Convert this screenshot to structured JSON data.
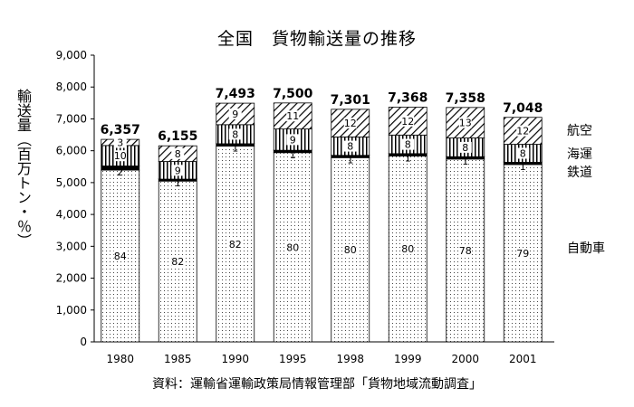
{
  "chart_data": {
    "type": "bar",
    "stacked": true,
    "title": "全国　貨物輸送量の推移",
    "ylabel": "輸送量（百万トン・％）",
    "source": "資料：運輸省運輸政策局情報管理部「貨物地域流動調査」",
    "ylim": [
      0,
      9000
    ],
    "yticks": [
      "0",
      "1,000",
      "2,000",
      "3,000",
      "4,000",
      "5,000",
      "6,000",
      "7,000",
      "8,000",
      "9,000"
    ],
    "categories": [
      "1980",
      "1985",
      "1990",
      "1995",
      "1998",
      "1999",
      "2000",
      "2001"
    ],
    "totals": [
      6357,
      6155,
      7493,
      7500,
      7301,
      7368,
      7358,
      7048
    ],
    "total_labels": [
      "6,357",
      "6,155",
      "7,493",
      "7,500",
      "7,301",
      "7,368",
      "7,358",
      "7,048"
    ],
    "series": [
      {
        "name": "自動車",
        "percent": [
          84,
          82,
          82,
          80,
          80,
          80,
          78,
          79
        ],
        "pattern": "dots"
      },
      {
        "name": "鉄道",
        "percent": [
          2,
          1,
          1,
          1,
          1,
          1,
          1,
          1
        ],
        "pattern": "solid"
      },
      {
        "name": "海運",
        "percent": [
          10,
          9,
          8,
          9,
          8,
          8,
          8,
          8
        ],
        "pattern": "vertical"
      },
      {
        "name": "航空",
        "percent": [
          3,
          8,
          9,
          11,
          12,
          12,
          13,
          12
        ],
        "pattern": "diagonal"
      }
    ],
    "segment_labels": [
      [
        "84",
        "2",
        "10",
        "3"
      ],
      [
        "82",
        "1",
        "9",
        "8"
      ],
      [
        "82",
        "1",
        "8",
        "9"
      ],
      [
        "80",
        "1",
        "9",
        "11"
      ],
      [
        "80",
        "1",
        "8",
        "12"
      ],
      [
        "80",
        "1",
        "8",
        "12"
      ],
      [
        "78",
        "1",
        "8",
        "13"
      ],
      [
        "79",
        "1",
        "8",
        "12"
      ]
    ],
    "legend": [
      "航空",
      "海運",
      "鉄道",
      "自動車"
    ],
    "legend_placement": "right",
    "grid": false
  }
}
